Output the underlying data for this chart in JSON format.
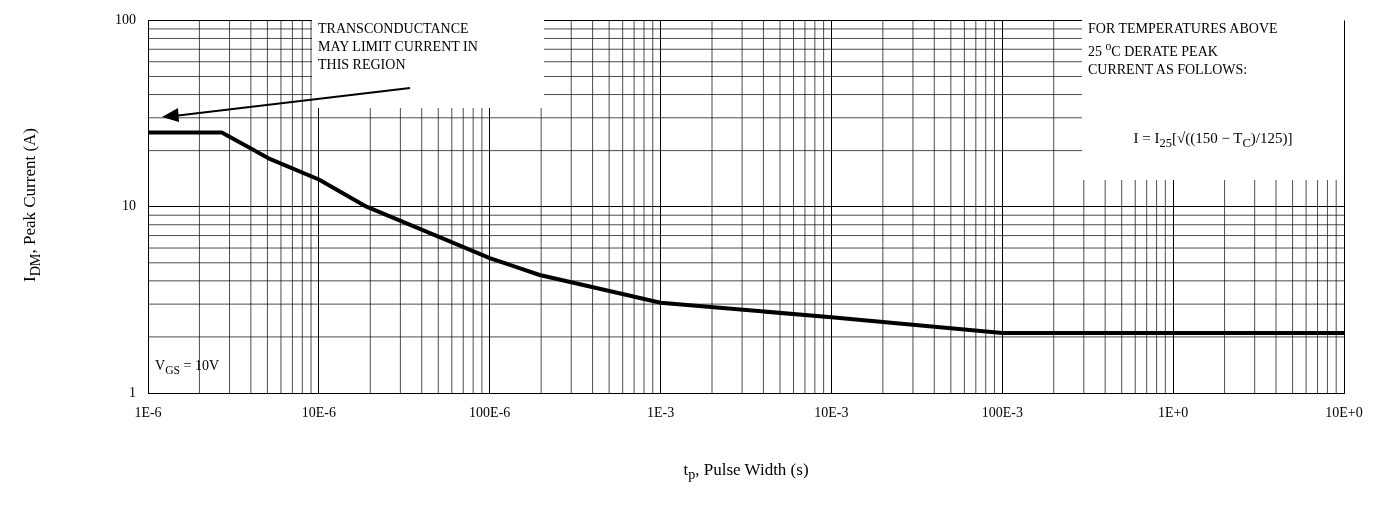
{
  "chart_data": {
    "type": "line",
    "xlabel": "t$_{p}$, Pulse Width (s)",
    "ylabel": "I$_{DM}$, Peak Current (A)",
    "annotations": [
      "TRANSCONDUCTANCE MAY LIMIT CURRENT IN THIS REGION",
      "FOR TEMPERATURES ABOVE 25 $^{o}$C DERATE PEAK CURRENT AS FOLLOWS:",
      "I = I$_{25}$[√((150 − T$_{C}$)/125)]",
      "V$_{GS}$ = 10V"
    ],
    "x": [
      1e-06,
      2.7e-06,
      5.2e-06,
      1e-05,
      1.9e-05,
      0.0001,
      0.000196,
      0.001,
      0.01,
      0.1,
      10
    ],
    "series": [
      {
        "color": "#000000",
        "values": [
          25,
          25,
          18,
          14,
          10,
          5.3,
          4.3,
          3.05,
          2.55,
          2.1,
          2.1
        ]
      }
    ],
    "xlim": [
      1e-06,
      10
    ],
    "ylim": [
      1,
      100
    ],
    "xticks": [
      {
        "value": 1e-06,
        "label": "1E-6"
      },
      {
        "value": 1e-05,
        "label": "10E-6"
      },
      {
        "value": 0.0001,
        "label": "100E-6"
      },
      {
        "value": 0.001,
        "label": "1E-3"
      },
      {
        "value": 0.01,
        "label": "10E-3"
      },
      {
        "value": 0.1,
        "label": "100E-3"
      },
      {
        "value": 1,
        "label": "1E+0"
      },
      {
        "value": 10,
        "label": "10E+0"
      }
    ],
    "yticks": [
      1,
      10,
      100
    ],
    "log": "xy",
    "grid": true,
    "legend": false,
    "marker": "none",
    "line_style": "solid"
  }
}
